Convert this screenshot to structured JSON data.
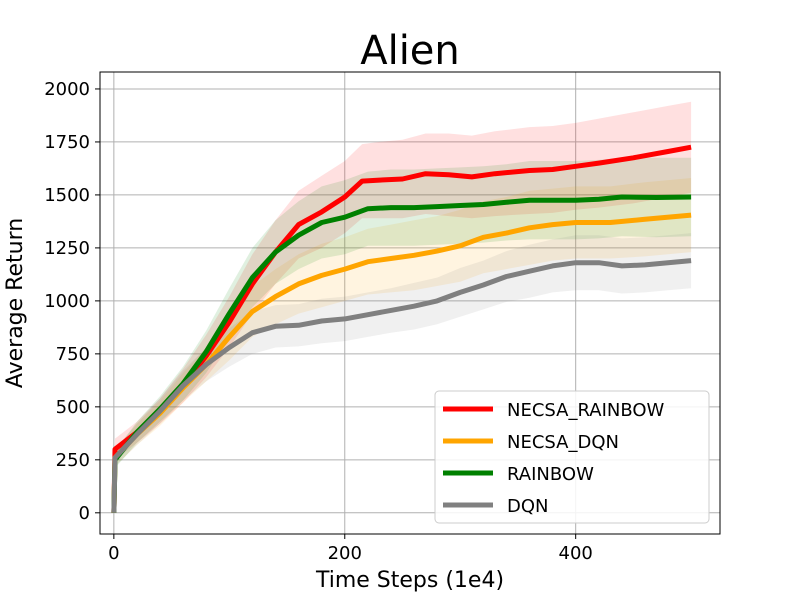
{
  "chart_data": {
    "type": "line",
    "title": "Alien",
    "xlabel": "Time Steps (1e4)",
    "ylabel": "Average Return",
    "xlim": [
      -12,
      525
    ],
    "ylim": [
      -100,
      2080
    ],
    "xticks": [
      0,
      200,
      400
    ],
    "yticks": [
      0,
      250,
      500,
      750,
      1000,
      1250,
      1500,
      1750,
      2000
    ],
    "grid": true,
    "legend_position": "bottom-right",
    "series": [
      {
        "name": "NECSA_RAINBOW",
        "color": "#ff0000",
        "points": [
          [
            0,
            0
          ],
          [
            1,
            300
          ],
          [
            20,
            380
          ],
          [
            40,
            480
          ],
          [
            60,
            600
          ],
          [
            80,
            740
          ],
          [
            100,
            900
          ],
          [
            120,
            1080
          ],
          [
            140,
            1230
          ],
          [
            160,
            1360
          ],
          [
            180,
            1420
          ],
          [
            200,
            1490
          ],
          [
            215,
            1565
          ],
          [
            230,
            1570
          ],
          [
            250,
            1575
          ],
          [
            270,
            1600
          ],
          [
            290,
            1595
          ],
          [
            310,
            1585
          ],
          [
            330,
            1600
          ],
          [
            360,
            1615
          ],
          [
            380,
            1620
          ],
          [
            400,
            1635
          ],
          [
            420,
            1650
          ],
          [
            450,
            1675
          ],
          [
            480,
            1705
          ],
          [
            500,
            1725
          ]
        ],
        "band": [
          [
            0,
            0,
            0
          ],
          [
            1,
            250,
            350
          ],
          [
            20,
            330,
            430
          ],
          [
            40,
            420,
            540
          ],
          [
            60,
            520,
            680
          ],
          [
            80,
            640,
            840
          ],
          [
            100,
            780,
            1020
          ],
          [
            120,
            940,
            1220
          ],
          [
            140,
            1080,
            1380
          ],
          [
            160,
            1200,
            1520
          ],
          [
            180,
            1250,
            1590
          ],
          [
            200,
            1320,
            1660
          ],
          [
            215,
            1390,
            1740
          ],
          [
            230,
            1390,
            1750
          ],
          [
            250,
            1390,
            1760
          ],
          [
            270,
            1410,
            1790
          ],
          [
            290,
            1400,
            1790
          ],
          [
            310,
            1390,
            1780
          ],
          [
            330,
            1400,
            1800
          ],
          [
            360,
            1410,
            1820
          ],
          [
            380,
            1415,
            1825
          ],
          [
            400,
            1430,
            1840
          ],
          [
            420,
            1440,
            1860
          ],
          [
            450,
            1460,
            1890
          ],
          [
            480,
            1490,
            1920
          ],
          [
            500,
            1510,
            1940
          ]
        ]
      },
      {
        "name": "NECSA_DQN",
        "color": "#ffa500",
        "points": [
          [
            0,
            0
          ],
          [
            1,
            260
          ],
          [
            20,
            370
          ],
          [
            40,
            470
          ],
          [
            60,
            590
          ],
          [
            80,
            700
          ],
          [
            100,
            830
          ],
          [
            120,
            950
          ],
          [
            140,
            1020
          ],
          [
            160,
            1080
          ],
          [
            180,
            1120
          ],
          [
            200,
            1150
          ],
          [
            220,
            1185
          ],
          [
            240,
            1200
          ],
          [
            260,
            1215
          ],
          [
            280,
            1235
          ],
          [
            300,
            1260
          ],
          [
            320,
            1300
          ],
          [
            340,
            1320
          ],
          [
            360,
            1345
          ],
          [
            380,
            1360
          ],
          [
            400,
            1370
          ],
          [
            430,
            1370
          ],
          [
            460,
            1385
          ],
          [
            500,
            1405
          ]
        ],
        "band": [
          [
            0,
            0,
            0
          ],
          [
            1,
            220,
            300
          ],
          [
            20,
            320,
            420
          ],
          [
            40,
            410,
            530
          ],
          [
            60,
            520,
            660
          ],
          [
            80,
            620,
            780
          ],
          [
            100,
            720,
            940
          ],
          [
            120,
            830,
            1070
          ],
          [
            140,
            890,
            1150
          ],
          [
            160,
            940,
            1220
          ],
          [
            180,
            970,
            1270
          ],
          [
            200,
            1000,
            1300
          ],
          [
            220,
            1030,
            1340
          ],
          [
            240,
            1040,
            1360
          ],
          [
            260,
            1050,
            1380
          ],
          [
            280,
            1070,
            1400
          ],
          [
            300,
            1090,
            1430
          ],
          [
            320,
            1130,
            1470
          ],
          [
            340,
            1150,
            1490
          ],
          [
            360,
            1170,
            1520
          ],
          [
            380,
            1190,
            1530
          ],
          [
            400,
            1200,
            1540
          ],
          [
            430,
            1200,
            1540
          ],
          [
            460,
            1210,
            1560
          ],
          [
            500,
            1230,
            1580
          ]
        ]
      },
      {
        "name": "RAINBOW",
        "color": "#008000",
        "points": [
          [
            0,
            0
          ],
          [
            1,
            250
          ],
          [
            20,
            380
          ],
          [
            40,
            490
          ],
          [
            60,
            610
          ],
          [
            80,
            760
          ],
          [
            100,
            940
          ],
          [
            120,
            1110
          ],
          [
            140,
            1230
          ],
          [
            160,
            1310
          ],
          [
            180,
            1370
          ],
          [
            200,
            1395
          ],
          [
            220,
            1435
          ],
          [
            240,
            1440
          ],
          [
            260,
            1440
          ],
          [
            280,
            1445
          ],
          [
            300,
            1450
          ],
          [
            320,
            1455
          ],
          [
            340,
            1465
          ],
          [
            360,
            1475
          ],
          [
            380,
            1475
          ],
          [
            400,
            1475
          ],
          [
            420,
            1480
          ],
          [
            440,
            1490
          ],
          [
            470,
            1488
          ],
          [
            500,
            1490
          ]
        ],
        "band": [
          [
            0,
            0,
            0
          ],
          [
            1,
            210,
            290
          ],
          [
            20,
            330,
            430
          ],
          [
            40,
            430,
            550
          ],
          [
            60,
            530,
            690
          ],
          [
            80,
            660,
            860
          ],
          [
            100,
            820,
            1060
          ],
          [
            120,
            970,
            1250
          ],
          [
            140,
            1080,
            1380
          ],
          [
            160,
            1150,
            1470
          ],
          [
            180,
            1200,
            1540
          ],
          [
            200,
            1220,
            1570
          ],
          [
            220,
            1260,
            1610
          ],
          [
            240,
            1260,
            1620
          ],
          [
            260,
            1260,
            1620
          ],
          [
            280,
            1265,
            1625
          ],
          [
            300,
            1270,
            1630
          ],
          [
            320,
            1275,
            1635
          ],
          [
            340,
            1285,
            1645
          ],
          [
            360,
            1290,
            1660
          ],
          [
            380,
            1290,
            1660
          ],
          [
            400,
            1290,
            1660
          ],
          [
            420,
            1295,
            1665
          ],
          [
            440,
            1305,
            1675
          ],
          [
            470,
            1300,
            1675
          ],
          [
            500,
            1305,
            1675
          ]
        ]
      },
      {
        "name": "DQN",
        "color": "#808080",
        "points": [
          [
            0,
            0
          ],
          [
            1,
            260
          ],
          [
            20,
            370
          ],
          [
            40,
            480
          ],
          [
            60,
            600
          ],
          [
            80,
            700
          ],
          [
            100,
            780
          ],
          [
            120,
            850
          ],
          [
            140,
            880
          ],
          [
            160,
            885
          ],
          [
            180,
            905
          ],
          [
            200,
            915
          ],
          [
            220,
            935
          ],
          [
            240,
            955
          ],
          [
            260,
            975
          ],
          [
            280,
            1000
          ],
          [
            300,
            1040
          ],
          [
            320,
            1075
          ],
          [
            340,
            1115
          ],
          [
            360,
            1140
          ],
          [
            380,
            1165
          ],
          [
            400,
            1180
          ],
          [
            420,
            1180
          ],
          [
            440,
            1165
          ],
          [
            460,
            1170
          ],
          [
            480,
            1180
          ],
          [
            500,
            1190
          ]
        ],
        "band": [
          [
            0,
            0,
            0
          ],
          [
            1,
            220,
            300
          ],
          [
            20,
            320,
            420
          ],
          [
            40,
            420,
            540
          ],
          [
            60,
            530,
            670
          ],
          [
            80,
            620,
            780
          ],
          [
            100,
            690,
            870
          ],
          [
            120,
            750,
            950
          ],
          [
            140,
            780,
            980
          ],
          [
            160,
            785,
            985
          ],
          [
            180,
            800,
            1010
          ],
          [
            200,
            810,
            1020
          ],
          [
            220,
            830,
            1040
          ],
          [
            240,
            850,
            1060
          ],
          [
            260,
            865,
            1085
          ],
          [
            280,
            890,
            1110
          ],
          [
            300,
            925,
            1155
          ],
          [
            320,
            960,
            1190
          ],
          [
            340,
            995,
            1235
          ],
          [
            360,
            1015,
            1265
          ],
          [
            380,
            1040,
            1290
          ],
          [
            400,
            1050,
            1310
          ],
          [
            420,
            1050,
            1310
          ],
          [
            440,
            1035,
            1295
          ],
          [
            460,
            1040,
            1300
          ],
          [
            480,
            1050,
            1310
          ],
          [
            500,
            1060,
            1320
          ]
        ]
      }
    ]
  }
}
